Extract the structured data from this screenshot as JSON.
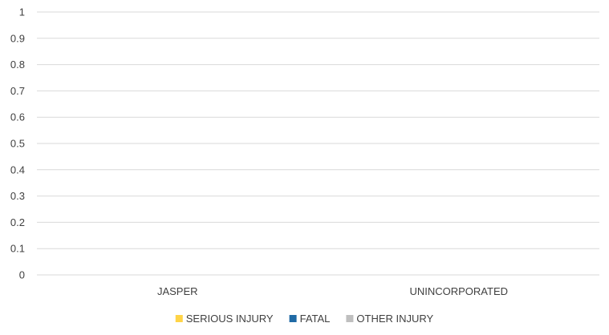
{
  "chart_data": {
    "type": "bar",
    "stacked": true,
    "categories": [
      "JASPER",
      "UNINCORPORATED"
    ],
    "series": [
      {
        "name": "SERIOUS INJURY",
        "color": "#FFD447",
        "values": [
          0,
          0
        ]
      },
      {
        "name": "FATAL",
        "color": "#1F6AA5",
        "values": [
          0,
          0
        ]
      },
      {
        "name": "OTHER INJURY",
        "color": "#BFBFBF",
        "values": [
          0,
          0
        ]
      }
    ],
    "y_ticks": [
      "0",
      "0.1",
      "0.2",
      "0.3",
      "0.4",
      "0.5",
      "0.6",
      "0.7",
      "0.8",
      "0.9",
      "1"
    ],
    "ylim": [
      0,
      1
    ],
    "grid": true,
    "legend_position": "bottom",
    "title": "",
    "xlabel": "",
    "ylabel": ""
  }
}
